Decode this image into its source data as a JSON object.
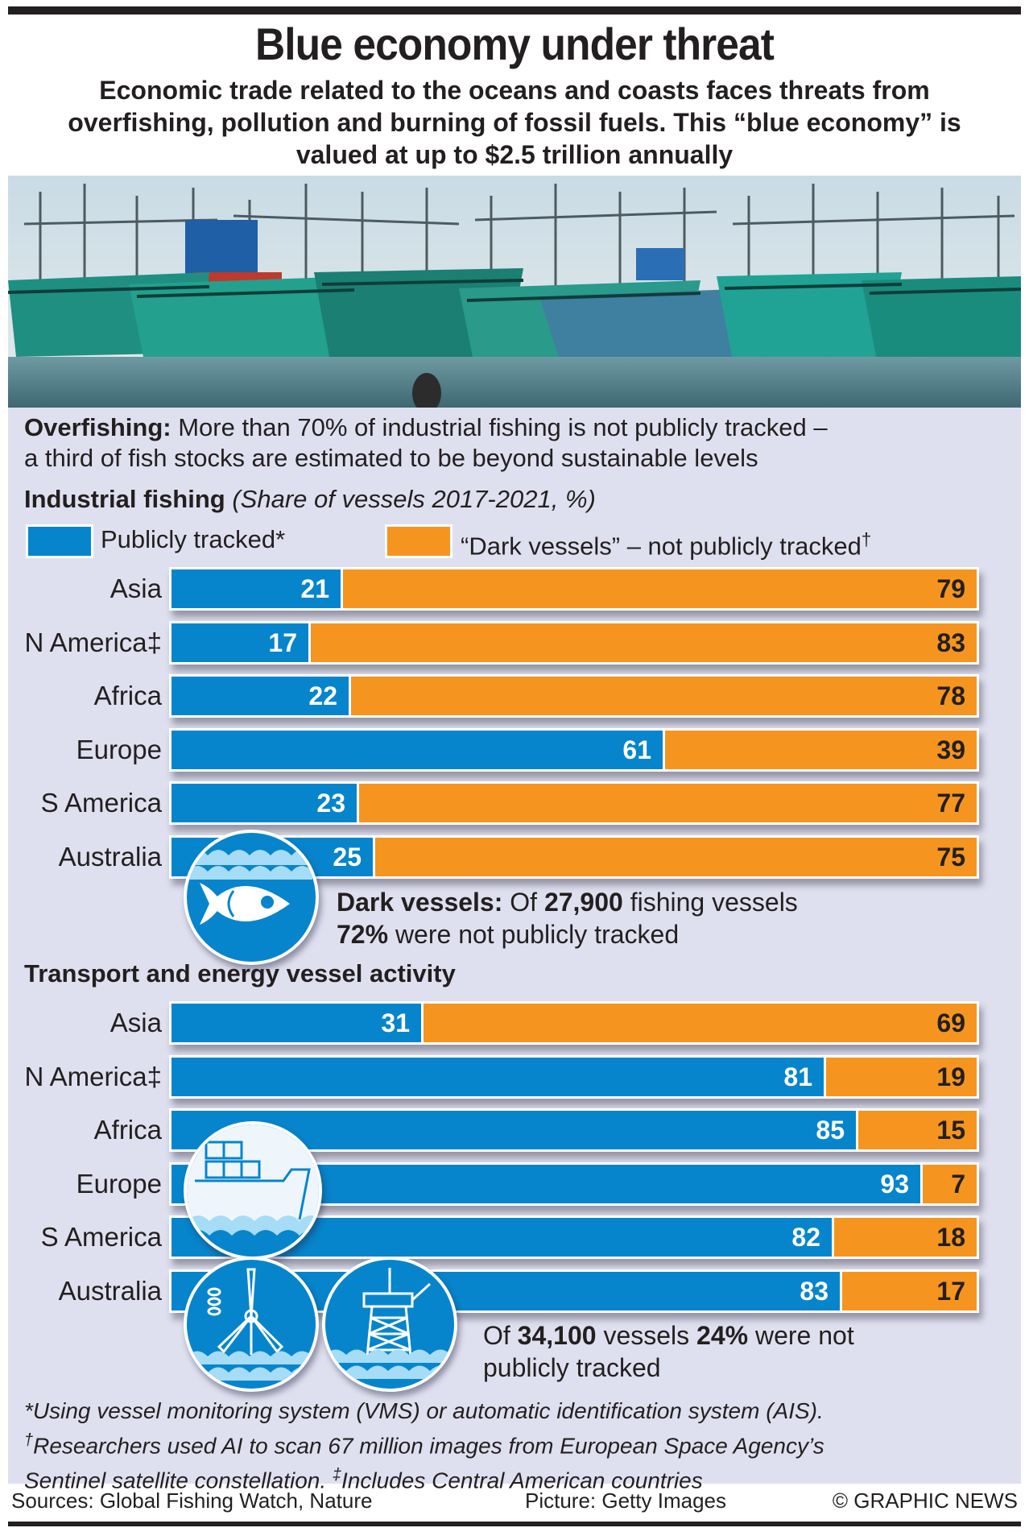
{
  "header": {
    "title": "Blue economy under threat",
    "subtitle": "Economic trade related to the oceans and coasts faces threats from overfishing, pollution and burning of fossil fuels. This “blue economy” is valued at up to $2.5 trillion annually"
  },
  "photo": {
    "description": "Colourful fishing trawlers moored in a harbour"
  },
  "overfishing": {
    "label": "Overfishing:",
    "text_line1": " More than 70% of industrial fishing is not publicly tracked –",
    "text_line2": "a third of fish stocks are estimated to be beyond sustainable levels"
  },
  "colors": {
    "tracked": "#0685cc",
    "dark": "#f5951f",
    "panel": "#dfe0ef"
  },
  "legend": {
    "tracked": "Publicly tracked*",
    "dark": "“Dark vessels” – not publicly tracked",
    "dark_mark": "†"
  },
  "fishing_note": {
    "label": "Dark vessels:",
    "pre": " Of ",
    "count": "27,900",
    "post": " fishing vessels",
    "pct": "72%",
    "line2": " were not publicly tracked"
  },
  "transport_note": {
    "pre": "Of ",
    "count": "34,100",
    "mid": " vessels ",
    "pct": "24%",
    "post": " were not",
    "line2": "publicly tracked"
  },
  "footnotes": {
    "star": "*Using vessel monitoring system (VMS) or automatic identification system (AIS).",
    "dagger_mark": "†",
    "dagger": "Researchers used AI to scan 67 million images from European Space Agency’s",
    "line3": "Sentinel satellite constellation. ",
    "ddagger_mark": "‡",
    "ddagger": "Includes Central American countries"
  },
  "credits": {
    "sources": "Sources: Global Fishing Watch, Nature",
    "picture": "Picture: Getty Images",
    "copyright": "© GRAPHIC NEWS"
  },
  "chart_data": [
    {
      "type": "bar",
      "stacked": true,
      "orientation": "horizontal",
      "title": "Industrial fishing",
      "subtitle": "(Share of vessels 2017-2021, %)",
      "categories": [
        "Asia",
        "N America‡",
        "Africa",
        "Europe",
        "S America",
        "Australia"
      ],
      "series": [
        {
          "name": "Publicly tracked*",
          "values": [
            21,
            17,
            22,
            61,
            23,
            25
          ]
        },
        {
          "name": "“Dark vessels” – not publicly tracked†",
          "values": [
            79,
            83,
            78,
            39,
            77,
            75
          ]
        }
      ],
      "xlim": [
        0,
        100
      ],
      "legend": "top",
      "grid": false
    },
    {
      "type": "bar",
      "stacked": true,
      "orientation": "horizontal",
      "title": "Transport and energy vessel activity",
      "categories": [
        "Asia",
        "N America‡",
        "Africa",
        "Europe",
        "S America",
        "Australia"
      ],
      "series": [
        {
          "name": "Publicly tracked*",
          "values": [
            31,
            81,
            85,
            93,
            82,
            83
          ]
        },
        {
          "name": "“Dark vessels” – not publicly tracked†",
          "values": [
            69,
            19,
            15,
            7,
            18,
            17
          ]
        }
      ],
      "xlim": [
        0,
        100
      ],
      "legend": "top",
      "grid": false
    }
  ]
}
